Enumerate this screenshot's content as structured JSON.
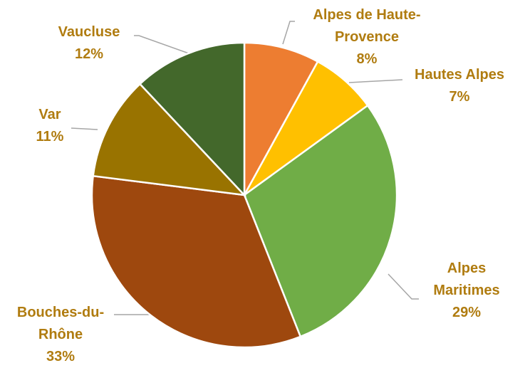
{
  "chart_data": {
    "type": "pie",
    "categories": [
      "Alpes de Haute-Provence",
      "Hautes Alpes",
      "Alpes Maritimes",
      "Bouches-du-Rhône",
      "Var",
      "Vaucluse"
    ],
    "values": [
      8,
      7,
      29,
      33,
      11,
      12
    ],
    "value_labels": [
      "8%",
      "7%",
      "29%",
      "33%",
      "11%",
      "12%"
    ],
    "colors": [
      "#ed7d31",
      "#ffc000",
      "#70ad47",
      "#9e480e",
      "#997300",
      "#43682b"
    ],
    "label_color": "#b07c10"
  }
}
